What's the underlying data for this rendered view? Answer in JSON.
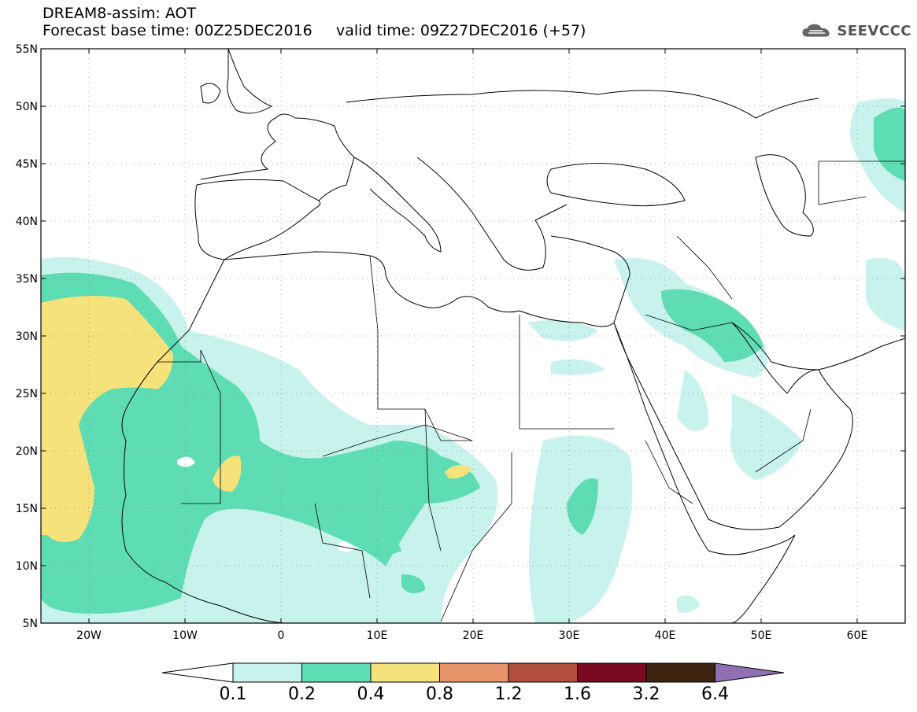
{
  "header": {
    "line1": "DREAM8-assim: AOT",
    "line2": "Forecast base time: 00Z25DEC2016     valid time: 09Z27DEC2016 (+57)"
  },
  "logo": {
    "text": "SEEVCCC",
    "icon": "cloud-icon"
  },
  "map": {
    "lon_range": [
      -25,
      65
    ],
    "lat_range": [
      5,
      55
    ],
    "lat_labels": [
      "5N",
      "10N",
      "15N",
      "20N",
      "25N",
      "30N",
      "35N",
      "40N",
      "45N",
      "50N",
      "55N"
    ],
    "lon_labels": [
      "20W",
      "10W",
      "0",
      "10E",
      "20E",
      "30E",
      "40E",
      "50E",
      "60E"
    ],
    "gridlines": "dotted"
  },
  "colorbar": {
    "labels": [
      "0.1",
      "0.2",
      "0.4",
      "0.8",
      "1.2",
      "1.6",
      "3.2",
      "6.4"
    ],
    "colors": [
      "#c8f2ec",
      "#5edcb4",
      "#f5e27a",
      "#e8946a",
      "#b0503c",
      "#7a0a20",
      "#3c2410",
      "#9070b0"
    ],
    "under_color": "#ffffff"
  }
}
